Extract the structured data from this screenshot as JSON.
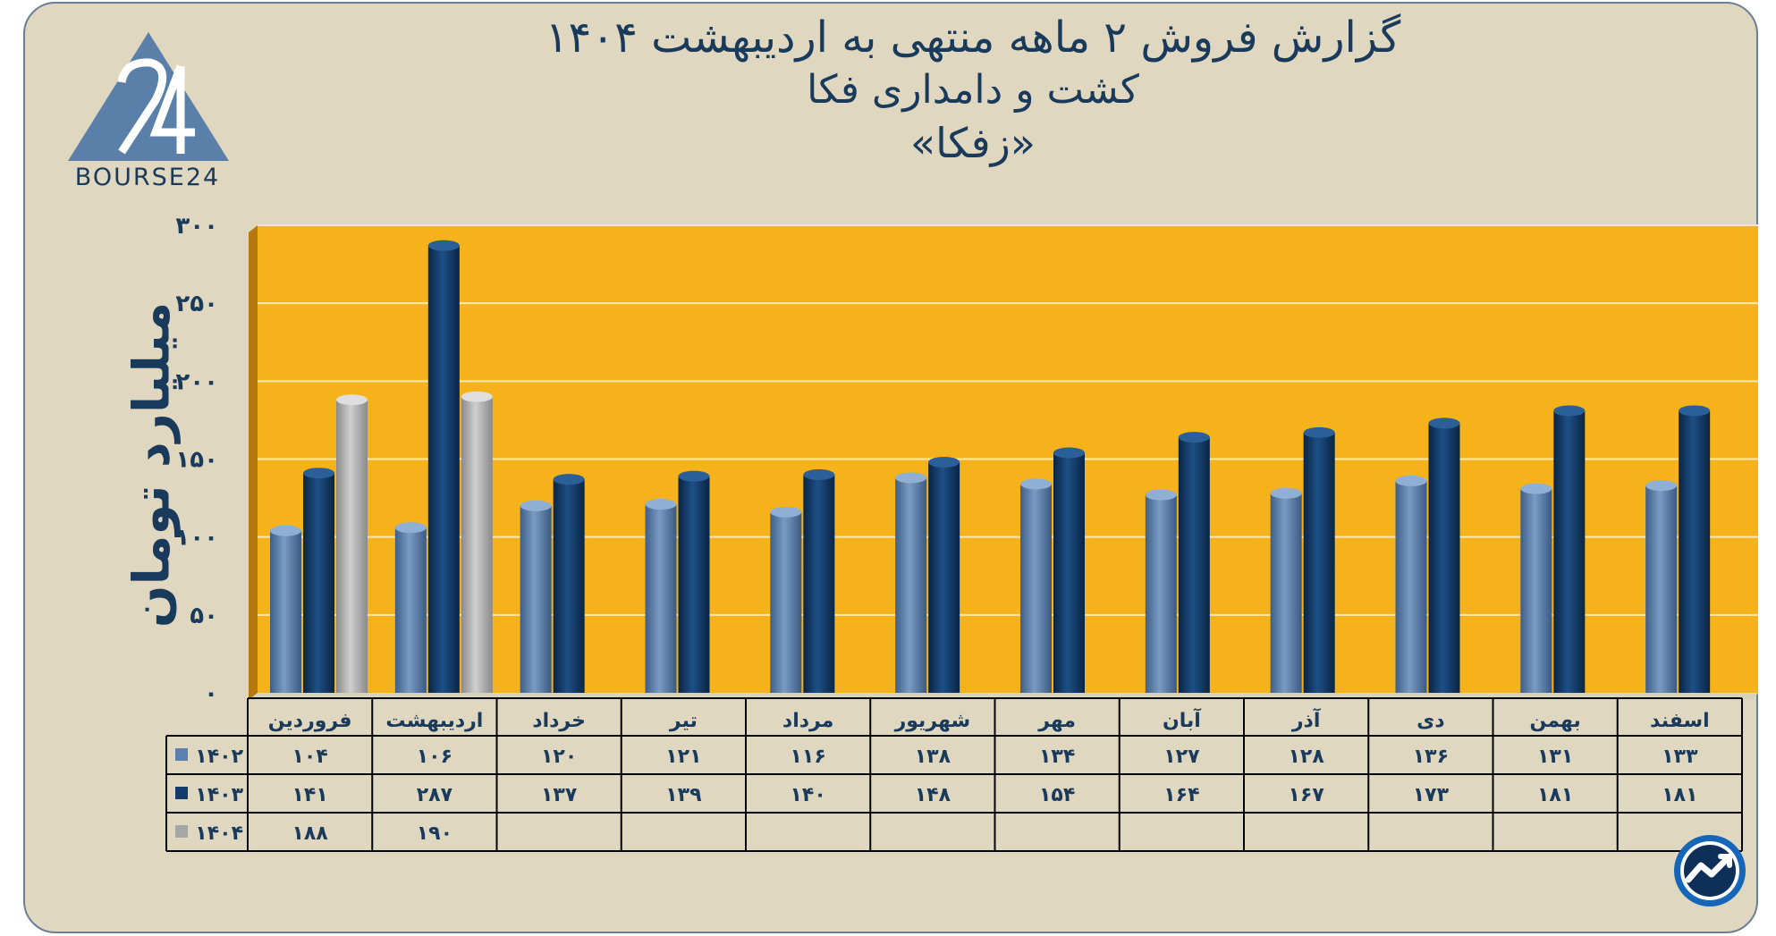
{
  "title": {
    "line1": "گزارش  فروش ۲ ماهه منتهی به اردیبهشت ۱۴۰۴",
    "line2": "کشت و دامداری فکا",
    "line3": "«زفکا»"
  },
  "logo": {
    "icon": "bourse24-logo-icon",
    "text": "BOURSE24"
  },
  "badge": {
    "icon": "trend-chart-icon"
  },
  "colors": {
    "background": "#dfd7bf",
    "plot": "#f6b21a",
    "s1402": "#5b80ad",
    "s1403": "#123b68",
    "s1404": "#a6a6a6",
    "text": "#1a3a5c"
  },
  "chart_data": {
    "type": "bar",
    "ylabel": "میلیارد تومان",
    "ylim": [
      0,
      300
    ],
    "yticks": [
      "۰",
      "۵۰",
      "۱۰۰",
      "۱۵۰",
      "۲۰۰",
      "۲۵۰",
      "۳۰۰"
    ],
    "categories": [
      "فروردین",
      "اردیبهشت",
      "خرداد",
      "تیر",
      "مرداد",
      "شهریور",
      "مهر",
      "آبان",
      "آذر",
      "دی",
      "بهمن",
      "اسفند"
    ],
    "series": [
      {
        "name": "۱۴۰۲",
        "values": [
          104,
          106,
          120,
          121,
          116,
          138,
          134,
          127,
          128,
          136,
          131,
          133
        ],
        "labels": [
          "۱۰۴",
          "۱۰۶",
          "۱۲۰",
          "۱۲۱",
          "۱۱۶",
          "۱۳۸",
          "۱۳۴",
          "۱۲۷",
          "۱۲۸",
          "۱۳۶",
          "۱۳۱",
          "۱۳۳"
        ]
      },
      {
        "name": "۱۴۰۳",
        "values": [
          141,
          287,
          137,
          139,
          140,
          148,
          154,
          164,
          167,
          173,
          181,
          181
        ],
        "labels": [
          "۱۴۱",
          "۲۸۷",
          "۱۳۷",
          "۱۳۹",
          "۱۴۰",
          "۱۴۸",
          "۱۵۴",
          "۱۶۴",
          "۱۶۷",
          "۱۷۳",
          "۱۸۱",
          "۱۸۱"
        ]
      },
      {
        "name": "۱۴۰۴",
        "values": [
          188,
          190,
          null,
          null,
          null,
          null,
          null,
          null,
          null,
          null,
          null,
          null
        ],
        "labels": [
          "۱۸۸",
          "۱۹۰",
          "",
          "",
          "",
          "",
          "",
          "",
          "",
          "",
          "",
          ""
        ]
      }
    ],
    "grid": true,
    "data_table": true
  }
}
